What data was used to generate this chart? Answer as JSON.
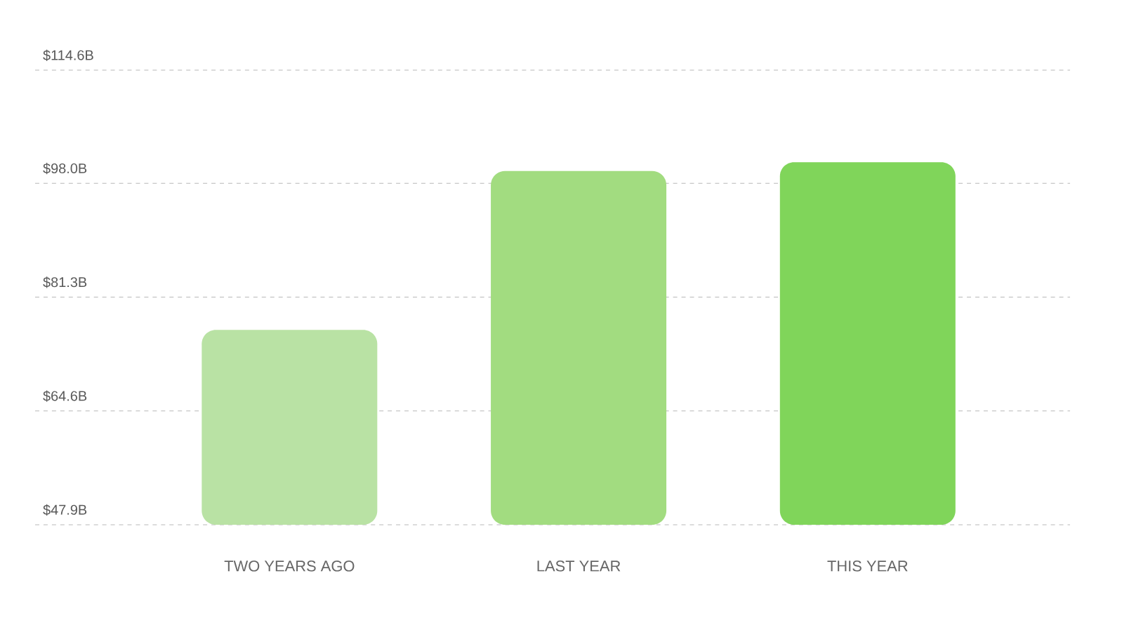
{
  "chart_data": {
    "type": "bar",
    "categories": [
      "TWO YEARS AGO",
      "LAST YEAR",
      "THIS YEAR"
    ],
    "values": [
      76.5,
      99.8,
      101.1
    ],
    "colors": [
      "#b9e2a4",
      "#a2dc80",
      "#80d55a"
    ],
    "ylim": [
      47.9,
      114.6
    ],
    "yticks": [
      {
        "value": 47.9,
        "label": "$47.9B"
      },
      {
        "value": 64.6,
        "label": "$64.6B"
      },
      {
        "value": 81.3,
        "label": "$81.3B"
      },
      {
        "value": 98.0,
        "label": "$98.0B"
      },
      {
        "value": 114.6,
        "label": "$114.6B"
      }
    ],
    "grid": "y"
  }
}
